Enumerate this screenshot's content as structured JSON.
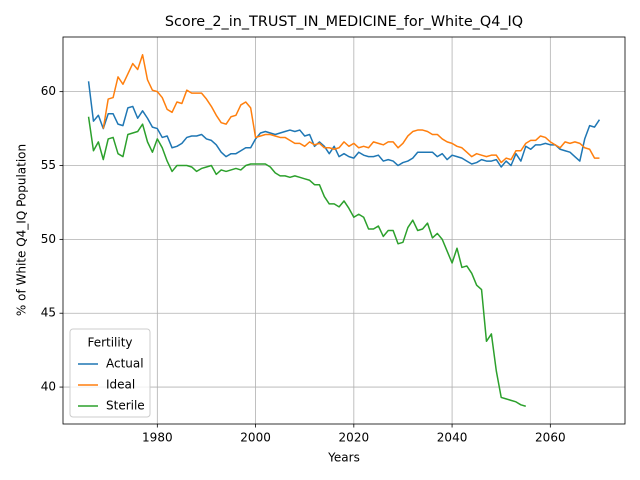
{
  "chart_data": {
    "type": "line",
    "title": "Score_2_in_TRUST_IN_MEDICINE_for_White_Q4_IQ",
    "x_label": "Years",
    "y_label": "% of White Q4_IQ Population",
    "legend_title": "Fertility",
    "legend_position": "lower left",
    "grid": true,
    "xlim": [
      1960.8,
      2075.2
    ],
    "ylim": [
      37.5,
      63.7
    ],
    "xticks": [
      1980,
      2000,
      2020,
      2040,
      2060
    ],
    "yticks": [
      40,
      45,
      50,
      55,
      60
    ],
    "x": [
      1966,
      1967,
      1968,
      1969,
      1970,
      1971,
      1972,
      1973,
      1974,
      1975,
      1976,
      1977,
      1978,
      1979,
      1980,
      1981,
      1982,
      1983,
      1984,
      1985,
      1986,
      1987,
      1988,
      1989,
      1990,
      1991,
      1992,
      1993,
      1994,
      1995,
      1996,
      1997,
      1998,
      1999,
      2000,
      2001,
      2002,
      2003,
      2004,
      2005,
      2006,
      2007,
      2008,
      2009,
      2010,
      2011,
      2012,
      2013,
      2014,
      2015,
      2016,
      2017,
      2018,
      2019,
      2020,
      2021,
      2022,
      2023,
      2024,
      2025,
      2026,
      2027,
      2028,
      2029,
      2030,
      2031,
      2032,
      2033,
      2034,
      2035,
      2036,
      2037,
      2038,
      2039,
      2040,
      2041,
      2042,
      2043,
      2044,
      2045,
      2046,
      2047,
      2048,
      2049,
      2050,
      2051,
      2052,
      2053,
      2054,
      2055,
      2056,
      2057,
      2058,
      2059,
      2060,
      2061,
      2062,
      2063,
      2064,
      2065,
      2066,
      2067,
      2068,
      2069,
      2070
    ],
    "series": [
      {
        "name": "Actual",
        "color": "#1f77b4",
        "values": [
          60.7,
          58.0,
          58.4,
          57.5,
          58.5,
          58.5,
          57.8,
          57.7,
          58.9,
          59.0,
          58.2,
          58.7,
          58.2,
          57.6,
          57.5,
          56.9,
          57.0,
          56.2,
          56.3,
          56.5,
          56.9,
          57.0,
          57.0,
          57.1,
          56.8,
          56.7,
          56.4,
          55.9,
          55.6,
          55.8,
          55.8,
          56.0,
          56.2,
          56.2,
          56.8,
          57.2,
          57.3,
          57.2,
          57.1,
          57.2,
          57.3,
          57.4,
          57.3,
          57.4,
          57.0,
          57.1,
          56.3,
          56.6,
          56.3,
          55.8,
          56.3,
          55.6,
          55.8,
          55.6,
          55.5,
          55.9,
          55.7,
          55.6,
          55.6,
          55.7,
          55.3,
          55.4,
          55.3,
          55.0,
          55.2,
          55.3,
          55.5,
          55.9,
          55.9,
          55.9,
          55.9,
          55.6,
          55.8,
          55.4,
          55.7,
          55.6,
          55.5,
          55.3,
          55.1,
          55.2,
          55.4,
          55.3,
          55.3,
          55.4,
          54.9,
          55.3,
          55.0,
          55.8,
          55.3,
          56.3,
          56.1,
          56.4,
          56.4,
          56.5,
          56.4,
          56.4,
          56.1,
          56.0,
          55.9,
          55.6,
          55.3,
          56.8,
          57.7,
          57.6,
          58.1
        ]
      },
      {
        "name": "Ideal",
        "color": "#ff7f0e",
        "values": [
          null,
          null,
          null,
          57.5,
          59.5,
          59.6,
          61.0,
          60.5,
          61.2,
          61.9,
          61.5,
          62.5,
          60.8,
          60.1,
          60.0,
          59.6,
          58.8,
          58.6,
          59.3,
          59.2,
          60.1,
          59.9,
          59.9,
          59.9,
          59.5,
          59.0,
          58.4,
          57.9,
          57.8,
          58.3,
          58.4,
          59.1,
          59.3,
          58.9,
          56.9,
          57.0,
          57.1,
          57.1,
          57.0,
          56.9,
          56.9,
          56.7,
          56.5,
          56.5,
          56.3,
          56.6,
          56.4,
          56.5,
          56.2,
          56.2,
          56.1,
          56.2,
          56.6,
          56.3,
          56.5,
          56.2,
          56.3,
          56.2,
          56.6,
          56.5,
          56.4,
          56.6,
          56.6,
          56.2,
          56.5,
          57.0,
          57.3,
          57.4,
          57.4,
          57.3,
          57.1,
          57.1,
          56.8,
          56.6,
          56.5,
          56.3,
          56.2,
          55.9,
          55.6,
          55.8,
          55.7,
          55.6,
          55.7,
          55.7,
          55.2,
          55.5,
          55.4,
          56.0,
          56.0,
          56.5,
          56.7,
          56.7,
          57.0,
          56.9,
          56.6,
          56.4,
          56.2,
          56.6,
          56.5,
          56.6,
          56.5,
          56.2,
          56.1,
          55.5,
          55.5
        ]
      },
      {
        "name": "Sterile",
        "color": "#2ca02c",
        "values": [
          58.3,
          56.0,
          56.6,
          55.4,
          56.8,
          56.9,
          55.8,
          55.6,
          57.1,
          57.2,
          57.3,
          57.8,
          56.6,
          55.9,
          56.8,
          56.2,
          55.3,
          54.6,
          55.0,
          55.0,
          55.0,
          54.9,
          54.6,
          54.8,
          54.9,
          55.0,
          54.4,
          54.7,
          54.6,
          54.7,
          54.8,
          54.7,
          55.0,
          55.1,
          55.1,
          55.1,
          55.1,
          54.9,
          54.5,
          54.3,
          54.3,
          54.2,
          54.3,
          54.2,
          54.1,
          54.0,
          53.7,
          53.7,
          52.9,
          52.4,
          52.4,
          52.2,
          52.6,
          52.1,
          51.5,
          51.7,
          51.5,
          50.7,
          50.7,
          50.9,
          50.2,
          50.6,
          50.6,
          49.7,
          49.8,
          50.8,
          51.3,
          50.6,
          50.7,
          51.1,
          50.1,
          50.4,
          50.0,
          49.2,
          48.4,
          49.4,
          48.1,
          48.2,
          47.7,
          46.9,
          46.6,
          43.1,
          43.6,
          41.1,
          39.3,
          39.2,
          39.1,
          39.0,
          38.8,
          38.7,
          null,
          null,
          null,
          null,
          null,
          null,
          null,
          null,
          null,
          null,
          null,
          null,
          null,
          null,
          null
        ]
      }
    ]
  }
}
